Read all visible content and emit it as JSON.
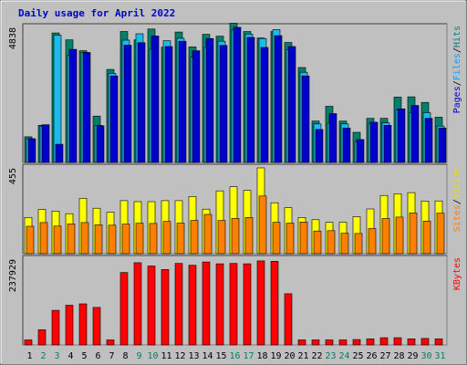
{
  "chart_data": {
    "type": "bar",
    "title": "Daily usage for April 2022",
    "days": [
      "1",
      "2",
      "3",
      "4",
      "5",
      "6",
      "7",
      "8",
      "9",
      "10",
      "11",
      "12",
      "13",
      "14",
      "15",
      "16",
      "17",
      "18",
      "19",
      "20",
      "21",
      "22",
      "23",
      "24",
      "25",
      "26",
      "27",
      "28",
      "29",
      "30",
      "31"
    ],
    "weekend_days": [
      "2",
      "3",
      "9",
      "10",
      "16",
      "17",
      "23",
      "24",
      "30",
      "31"
    ],
    "panels": [
      {
        "id": "hits",
        "ymax_label": "4838",
        "ymax": 4838,
        "legend": [
          {
            "text": "Pages",
            "color": "#0000cc"
          },
          {
            "text": "Files",
            "color": "#00a0ff"
          },
          {
            "text": "Hits",
            "color": "#008080"
          }
        ],
        "series": [
          {
            "name": "Hits",
            "color": "#00806a",
            "values": [
              920,
              1330,
              4640,
              4390,
              4000,
              1660,
              3330,
              4690,
              4390,
              4780,
              4130,
              4670,
              4140,
              4590,
              4520,
              4990,
              4690,
              4460,
              4690,
              4300,
              3400,
              1480,
              2010,
              1480,
              1080,
              1580,
              1580,
              2340,
              2350,
              2150,
              1620
            ]
          },
          {
            "name": "Files",
            "color": "#1fb8ec",
            "values": [
              850,
              1300,
              4560,
              3830,
              3940,
              1330,
              3190,
              4380,
              4610,
              4050,
              4360,
              4450,
              3770,
              4120,
              4340,
              4740,
              4600,
              4440,
              4760,
              4040,
              3230,
              1380,
              1410,
              1380,
              730,
              1380,
              1420,
              1880,
              1780,
              1780,
              1300
            ]
          },
          {
            "name": "Pages",
            "color": "#0000cc",
            "values": [
              850,
              1350,
              650,
              4050,
              3940,
              1310,
              3100,
              4200,
              4290,
              4530,
              4150,
              4340,
              4000,
              4440,
              4190,
              4840,
              4480,
              4120,
              4540,
              4150,
              3100,
              1180,
              1750,
              1230,
              820,
              1440,
              1330,
              1920,
              2040,
              1580,
              1230
            ]
          }
        ]
      },
      {
        "id": "visits",
        "ymax_label": "455",
        "ymax": 455,
        "legend": [
          {
            "text": "Sites",
            "color": "#ff8000"
          },
          {
            "text": "Visits",
            "color": "#e0e000"
          }
        ],
        "series": [
          {
            "name": "Visits",
            "color": "#ffff00",
            "values": [
              192,
              235,
              226,
              212,
              294,
              241,
              220,
              281,
              276,
              276,
              281,
              281,
              303,
              236,
              333,
              355,
              336,
              455,
              270,
              244,
              192,
              180,
              166,
              167,
              196,
              237,
              309,
              318,
              324,
              279,
              280
            ]
          },
          {
            "name": "Sites",
            "color": "#ff8000",
            "values": [
              145,
              165,
              146,
              158,
              165,
              153,
              151,
              157,
              161,
              160,
              171,
              162,
              176,
              208,
              176,
              187,
              192,
              306,
              166,
              162,
              168,
              120,
              122,
              108,
              107,
              133,
              187,
              194,
              216,
              173,
              215
            ]
          }
        ]
      },
      {
        "id": "kbytes",
        "ymax_label": "237929",
        "ymax": 237929,
        "legend": [
          {
            "text": "KBytes",
            "color": "#ff0000"
          }
        ],
        "series": [
          {
            "name": "KBytes",
            "color": "#ff0000",
            "values": [
              14000,
              42000,
              96000,
              110000,
              114000,
              104000,
              14000,
              201000,
              228000,
              219000,
              209000,
              226000,
              221000,
              230000,
              225000,
              226000,
              225000,
              233000,
              232000,
              142000,
              14000,
              14000,
              14000,
              14000,
              15000,
              17000,
              20000,
              20000,
              17000,
              18000,
              17000
            ]
          }
        ]
      }
    ],
    "colors": {
      "background": "#c0c0c0",
      "plot_frame": "#000000",
      "bar_outline": "#000000",
      "weekday_label": "#000000",
      "weekend_label": "#00806a"
    }
  }
}
